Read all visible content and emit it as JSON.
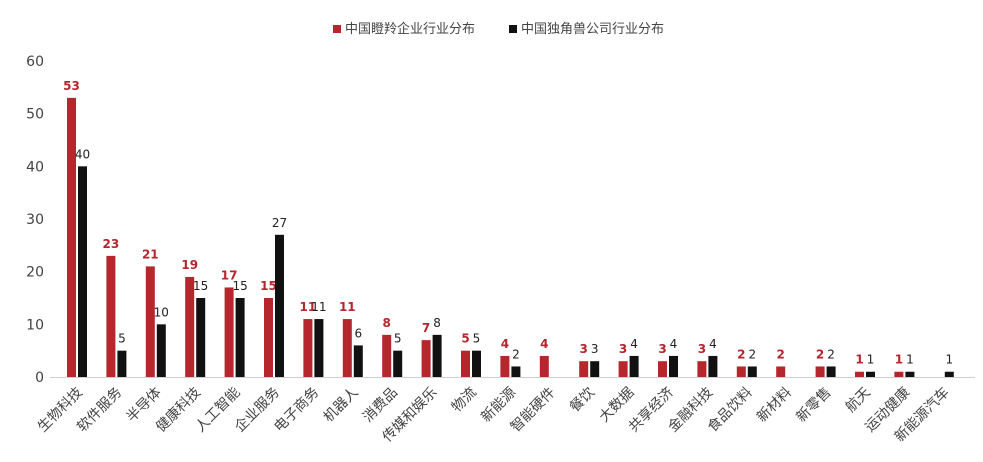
{
  "chart_data": {
    "type": "bar",
    "categories": [
      "生物科技",
      "软件服务",
      "半导体",
      "健康科技",
      "人工智能",
      "企业服务",
      "电子商务",
      "机器人",
      "消费品",
      "传媒和娱乐",
      "物流",
      "新能源",
      "智能硬件",
      "餐饮",
      "大数据",
      "共享经济",
      "金融科技",
      "食品饮料",
      "新材料",
      "新零售",
      "航天",
      "运动健康",
      "新能源汽车"
    ],
    "series": [
      {
        "name": "中国瞪羚企业行业分布",
        "color": "#b5262d",
        "values": [
          53,
          23,
          21,
          19,
          17,
          15,
          11,
          11,
          8,
          7,
          5,
          4,
          4,
          3,
          3,
          3,
          3,
          2,
          2,
          2,
          1,
          1,
          null
        ]
      },
      {
        "name": "中国独角兽公司行业分布",
        "color": "#111111",
        "values": [
          40,
          5,
          10,
          15,
          15,
          27,
          11,
          6,
          5,
          8,
          5,
          2,
          null,
          3,
          4,
          4,
          4,
          2,
          null,
          2,
          1,
          1,
          1
        ]
      }
    ],
    "ylim": [
      0,
      60
    ],
    "yticks": [
      0,
      10,
      20,
      30,
      40,
      50,
      60
    ],
    "grid": false,
    "legend_position": "top-center",
    "data_labels": true
  }
}
